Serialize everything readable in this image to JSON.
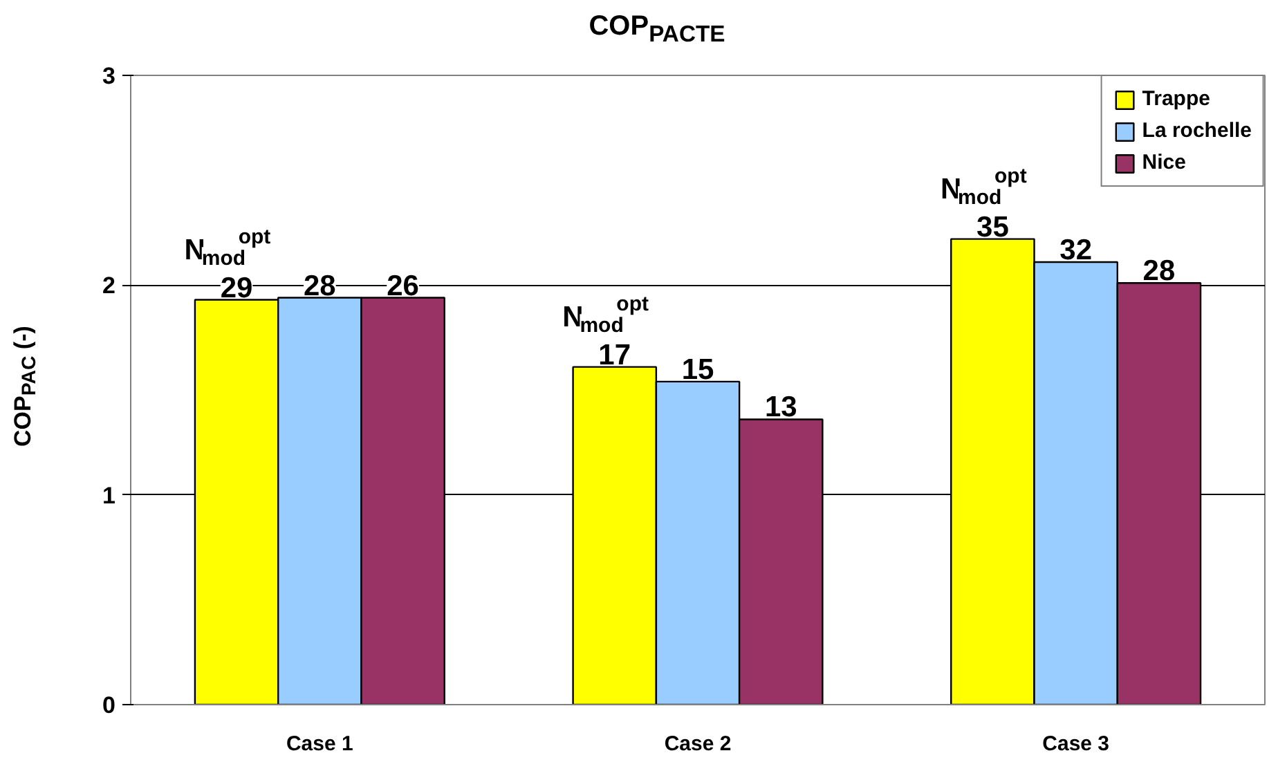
{
  "chart_data": {
    "type": "bar",
    "title": "COP$_{PACTE}$",
    "ylabel": "COP$_{PAC}$ (-)",
    "categories": [
      "Case 1",
      "Case 2",
      "Case 3"
    ],
    "series": [
      {
        "name": "Trappe",
        "color": "#ffff00",
        "values": [
          1.93,
          1.61,
          2.22
        ]
      },
      {
        "name": "La rochelle",
        "color": "#99ccff",
        "values": [
          1.94,
          1.54,
          2.11
        ]
      },
      {
        "name": "Nice",
        "color": "#993366",
        "values": [
          1.94,
          1.36,
          2.01
        ]
      }
    ],
    "annotations": [
      "N$_{mod}$$^{opt}$",
      "N$_{mod}$$^{opt}$",
      "N$_{mod}$$^{opt}$",
      {
        "text": "29",
        "x": "Case 1",
        "y": 1.93
      },
      {
        "text": "28",
        "x": "Case 1",
        "y": 1.94
      },
      {
        "text": "26",
        "x": "Case 1",
        "y": 1.94
      },
      {
        "text": "17",
        "x": "Case 2",
        "y": 1.61
      },
      {
        "text": "15",
        "x": "Case 2",
        "y": 1.54
      },
      {
        "text": "32",
        "x": "Case 3",
        "y": 2.11
      },
      "13",
      "35",
      "28"
    ],
    "ylim": [
      0,
      3
    ],
    "yticks": [
      0,
      1,
      2,
      3
    ],
    "grid": "y",
    "legend": "top right"
  }
}
